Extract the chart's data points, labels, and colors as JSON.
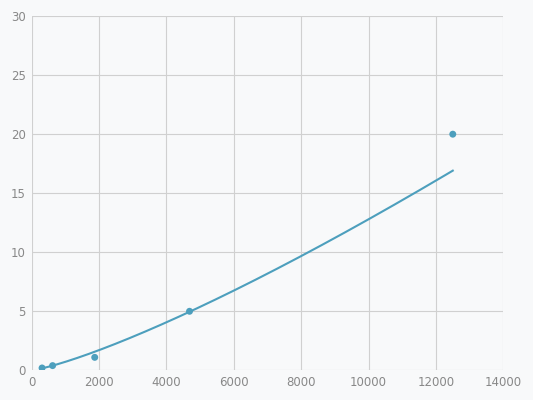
{
  "x": [
    312,
    625,
    1875,
    4688,
    12500
  ],
  "y": [
    0.2,
    0.4,
    1.1,
    5.0,
    20.0
  ],
  "line_color": "#4d9fbd",
  "marker_color": "#4d9fbd",
  "marker_size": 5,
  "line_width": 1.5,
  "xlim": [
    0,
    14000
  ],
  "ylim": [
    0,
    30
  ],
  "xticks": [
    0,
    2000,
    4000,
    6000,
    8000,
    10000,
    12000,
    14000
  ],
  "yticks": [
    0,
    5,
    10,
    15,
    20,
    25,
    30
  ],
  "grid_color": "#d0d0d0",
  "bg_color": "#f8f9fa",
  "tick_label_color": "#888888",
  "tick_label_size": 8.5
}
